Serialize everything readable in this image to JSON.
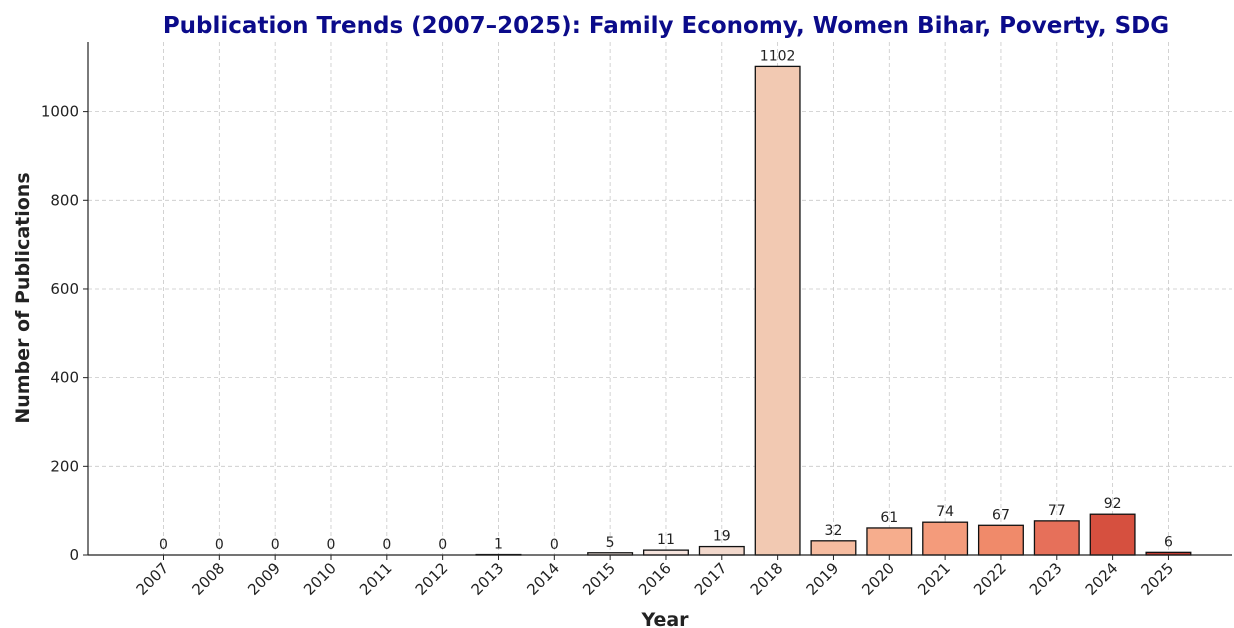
{
  "chart_data": {
    "type": "bar",
    "title": "Publication Trends (2007–2025): Family Economy, Women Bihar, Poverty, SDG",
    "xlabel": "Year",
    "ylabel": "Number of Publications",
    "categories": [
      "2007",
      "2008",
      "2009",
      "2010",
      "2011",
      "2012",
      "2013",
      "2014",
      "2015",
      "2016",
      "2017",
      "2018",
      "2019",
      "2020",
      "2021",
      "2022",
      "2023",
      "2024",
      "2025"
    ],
    "values": [
      0,
      0,
      0,
      0,
      0,
      0,
      1,
      0,
      5,
      11,
      19,
      1102,
      32,
      61,
      74,
      67,
      77,
      92,
      6
    ],
    "colors": [
      "#fff5f0",
      "#fef0e9",
      "#feebe2",
      "#fee5da",
      "#fde0d3",
      "#fcdacc",
      "#fcd3c3",
      "#fbccba",
      "#f7ebe4",
      "#f5e3dc",
      "#f2d8cc",
      "#f2c9b2",
      "#f6bca0",
      "#f6ad8d",
      "#f49b7b",
      "#f08a6a",
      "#e6705a",
      "#d6503f",
      "#bf3a30"
    ],
    "ylim": [
      0,
      1157
    ],
    "yticks": [
      0,
      200,
      400,
      600,
      800,
      1000
    ],
    "grid": true
  }
}
